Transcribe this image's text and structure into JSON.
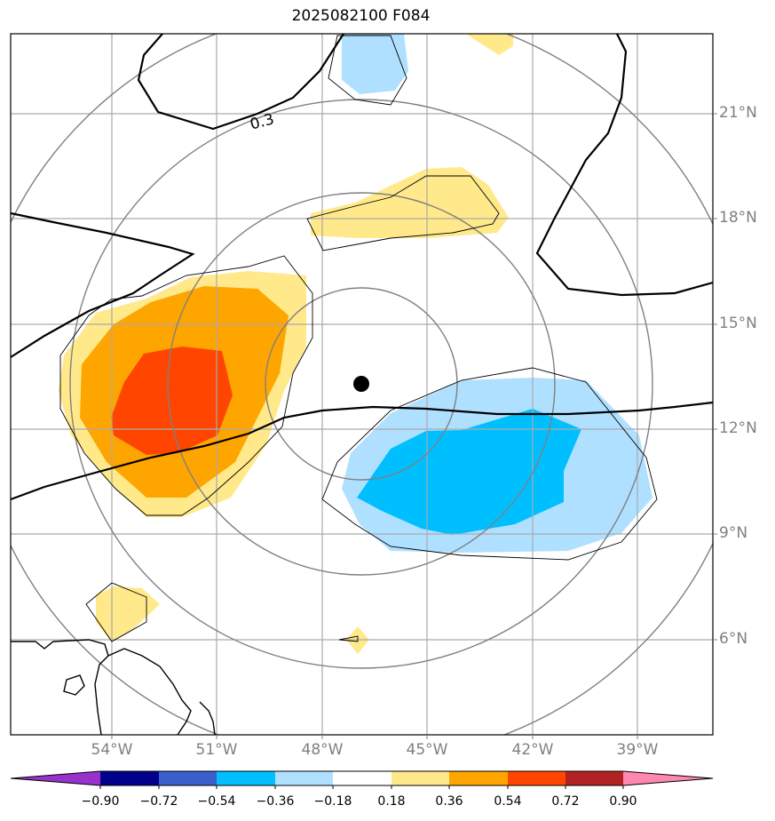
{
  "title": "2025082100 F084",
  "map": {
    "lat_ticks": [
      "21°N",
      "18°N",
      "15°N",
      "12°N",
      "9°N",
      "6°N"
    ],
    "lon_ticks": [
      "54°W",
      "51°W",
      "48°W",
      "45°W",
      "42°W",
      "39°W"
    ],
    "contour_label": "0.3",
    "center_marker": "storm-center-dot"
  },
  "colorbar": {
    "labels": [
      "−0.90",
      "−0.72",
      "−0.54",
      "−0.36",
      "−0.18",
      "0.18",
      "0.36",
      "0.54",
      "0.72",
      "0.90"
    ],
    "colors": [
      "#9932cc",
      "#00008b",
      "#3a5fcd",
      "#00bfff",
      "#b0e0ff",
      "#ffffff",
      "#ffe98a",
      "#ffa500",
      "#ff4500",
      "#b22222",
      "#ff88b0"
    ]
  }
}
